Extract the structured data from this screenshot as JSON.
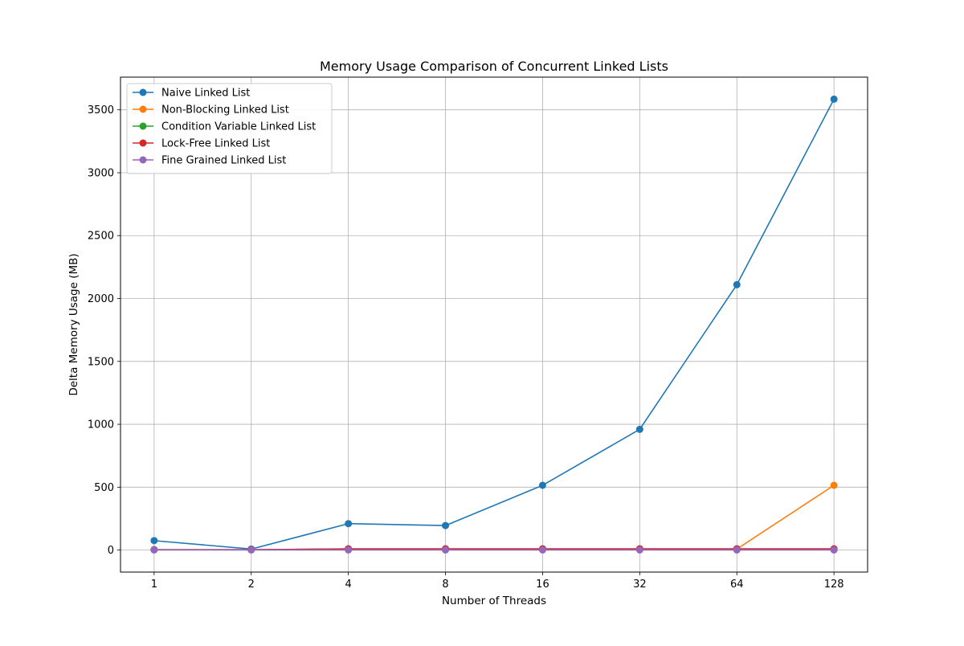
{
  "chart_data": {
    "type": "line",
    "title": "Memory Usage Comparison of Concurrent Linked Lists",
    "xlabel": "Number of Threads",
    "ylabel": "Delta Memory Usage (MB)",
    "x_scale": "log2",
    "x": [
      1,
      2,
      4,
      8,
      16,
      32,
      64,
      128
    ],
    "xticks": [
      "1",
      "2",
      "4",
      "8",
      "16",
      "32",
      "64",
      "128"
    ],
    "ylim": [
      -175,
      3760
    ],
    "yticks": [
      "0",
      "500",
      "1000",
      "1500",
      "2000",
      "2500",
      "3000",
      "3500"
    ],
    "grid": true,
    "legend_position": "top-left",
    "series": [
      {
        "name": "Naive Linked List",
        "color": "#1f77b4",
        "values": [
          75,
          8,
          210,
          195,
          515,
          960,
          2110,
          3585
        ]
      },
      {
        "name": "Non-Blocking Linked List",
        "color": "#ff7f0e",
        "values": [
          3,
          3,
          8,
          8,
          8,
          8,
          8,
          515
        ]
      },
      {
        "name": "Condition Variable Linked List",
        "color": "#2ca02c",
        "values": [
          3,
          3,
          8,
          8,
          8,
          8,
          8,
          8
        ]
      },
      {
        "name": "Lock-Free Linked List",
        "color": "#d62728",
        "values": [
          3,
          3,
          10,
          10,
          10,
          10,
          10,
          10
        ]
      },
      {
        "name": "Fine Grained Linked List",
        "color": "#9467bd",
        "values": [
          1,
          1,
          1,
          1,
          1,
          1,
          1,
          1
        ]
      }
    ]
  }
}
